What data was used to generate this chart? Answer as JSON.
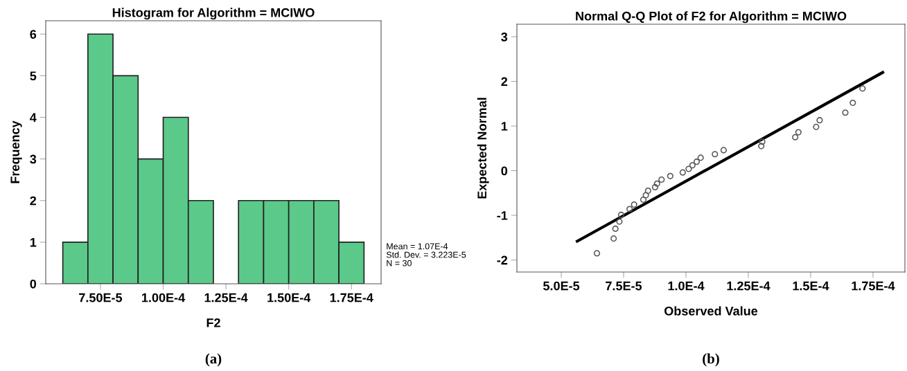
{
  "chart_data": [
    {
      "type": "histogram",
      "title": "Histogram for Algorithm = MCIWO",
      "xlabel": "F2",
      "ylabel": "Frequency",
      "bins": [
        6e-05,
        7e-05,
        8e-05,
        9e-05,
        0.0001,
        0.00011,
        0.00012,
        0.00013,
        0.00014,
        0.00015,
        0.00016,
        0.00017,
        0.00018
      ],
      "values": [
        1,
        6,
        5,
        3,
        4,
        2,
        0,
        2,
        2,
        2,
        2,
        1
      ],
      "color": "#5bc98a",
      "xlim": [
        5.32e-05,
        0.0001868
      ],
      "ylim": [
        0,
        6.32
      ],
      "xticks": [
        {
          "value": 7.5e-05,
          "label": "7.50E-5"
        },
        {
          "value": 0.0001,
          "label": "1.00E-4"
        },
        {
          "value": 0.000125,
          "label": "1.25E-4"
        },
        {
          "value": 0.00015,
          "label": "1.50E-4"
        },
        {
          "value": 0.000175,
          "label": "1.75E-4"
        }
      ],
      "yticks": [
        0,
        1,
        2,
        3,
        4,
        5,
        6
      ],
      "grid": false,
      "legend": false,
      "annotations": [
        "Mean = 1.07E-4",
        "Std. Dev. = 3.223E-5",
        "N = 30",
        "(a)"
      ]
    },
    {
      "type": "scatter",
      "title": "Normal Q-Q Plot of F2 for Algorithm = MCIWO",
      "xlabel": "Observed Value",
      "ylabel": "Expected Normal",
      "series": [
        {
          "type": "scatter",
          "color": "#555555",
          "marker": "circle",
          "x": [
            6.43e-05,
            7.1e-05,
            7.17e-05,
            7.33e-05,
            7.4e-05,
            7.74e-05,
            7.92e-05,
            8.29e-05,
            8.39e-05,
            8.48e-05,
            8.76e-05,
            8.84e-05,
            9.02e-05,
            9.37e-05,
            9.87e-05,
            0.0001011,
            0.0001026,
            0.0001043,
            0.0001059,
            0.0001116,
            0.0001151,
            0.0001302,
            0.0001306,
            0.0001438,
            0.0001451,
            0.0001522,
            0.0001536,
            0.0001639,
            0.0001669,
            0.0001708
          ],
          "values": [
            -1.85,
            -1.52,
            -1.3,
            -1.14,
            -0.99,
            -0.86,
            -0.76,
            -0.65,
            -0.55,
            -0.45,
            -0.37,
            -0.29,
            -0.2,
            -0.12,
            -0.04,
            0.04,
            0.12,
            0.2,
            0.29,
            0.37,
            0.46,
            0.55,
            0.65,
            0.75,
            0.86,
            0.98,
            1.13,
            1.3,
            1.52,
            1.84
          ]
        },
        {
          "type": "line",
          "color": "#000000",
          "marker": "none",
          "line_style": "solid",
          "x": [
            5.64e-05,
            0.0001789
          ],
          "values": [
            -1.58,
            2.2
          ]
        }
      ],
      "xlim": [
        3.22e-05,
        0.0001878
      ],
      "ylim": [
        -2.27,
        3.28
      ],
      "xticks": [
        {
          "value": 5e-05,
          "label": "5.0E-5"
        },
        {
          "value": 7.5e-05,
          "label": "7.5E-5"
        },
        {
          "value": 0.0001,
          "label": "1.0E-4"
        },
        {
          "value": 0.000125,
          "label": "1.25E-4"
        },
        {
          "value": 0.00015,
          "label": "1.5E-4"
        },
        {
          "value": 0.000175,
          "label": "1.75E-4"
        }
      ],
      "yticks": [
        {
          "value": -2,
          "label": "-2"
        },
        {
          "value": -1,
          "label": "-1"
        },
        0,
        1,
        2,
        3
      ],
      "grid": false,
      "legend": false,
      "annotations": [
        "(b)"
      ]
    }
  ]
}
